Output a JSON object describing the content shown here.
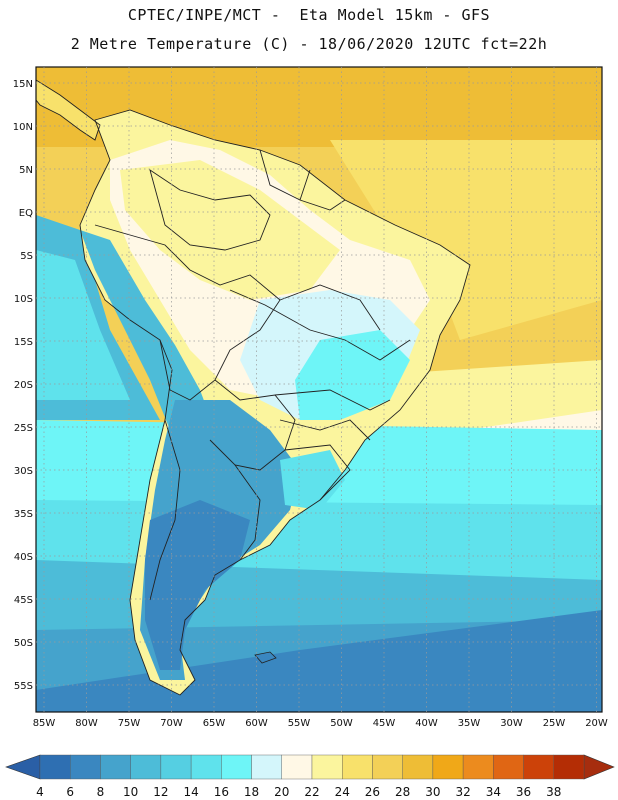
{
  "header": {
    "line1": "CPTEC/INPE/MCT -  Eta Model 15km - GFS",
    "line2": "2 Metre Temperature (C) - 18/06/2020 12UTC fct=22h"
  },
  "axes": {
    "lat_labels": [
      "15N",
      "10N",
      "5N",
      "EQ",
      "5S",
      "10S",
      "15S",
      "20S",
      "25S",
      "30S",
      "35S",
      "40S",
      "45S",
      "50S",
      "55S"
    ],
    "lon_labels": [
      "85W",
      "80W",
      "75W",
      "70W",
      "65W",
      "60W",
      "55W",
      "50W",
      "45W",
      "40W",
      "35W",
      "30W",
      "25W",
      "20W"
    ]
  },
  "colorbar": {
    "labels": [
      "4",
      "6",
      "8",
      "10",
      "12",
      "14",
      "16",
      "18",
      "20",
      "22",
      "24",
      "26",
      "28",
      "30",
      "32",
      "34",
      "36",
      "38"
    ],
    "colors": [
      "#2e6fb2",
      "#3a87c0",
      "#45a3cc",
      "#4dbcd8",
      "#55cfe2",
      "#5fe2ec",
      "#6ef5f7",
      "#d4f6fb",
      "#fff8e6",
      "#fbf59e",
      "#f8e16b",
      "#f3d057",
      "#eebd36",
      "#f0a818",
      "#ec8b1e",
      "#e06614",
      "#cc4209",
      "#b42d05"
    ],
    "low_color": "#2a5fa6",
    "high_color": "#a62d0e"
  },
  "map_colors": {
    "deep_blue": "#2e6fb2",
    "mid_blue": "#3a87c0",
    "blue_teal": "#45a3cc",
    "teal": "#4dbcd8",
    "light_teal": "#5fe2ec",
    "cyan": "#6ef5f7",
    "pale_cyan": "#d4f6fb",
    "cream": "#fff8e6",
    "pale_yellow": "#fbf59e",
    "yellow": "#f8e16b",
    "gold": "#f3d057",
    "orange_gold": "#eebd36"
  }
}
